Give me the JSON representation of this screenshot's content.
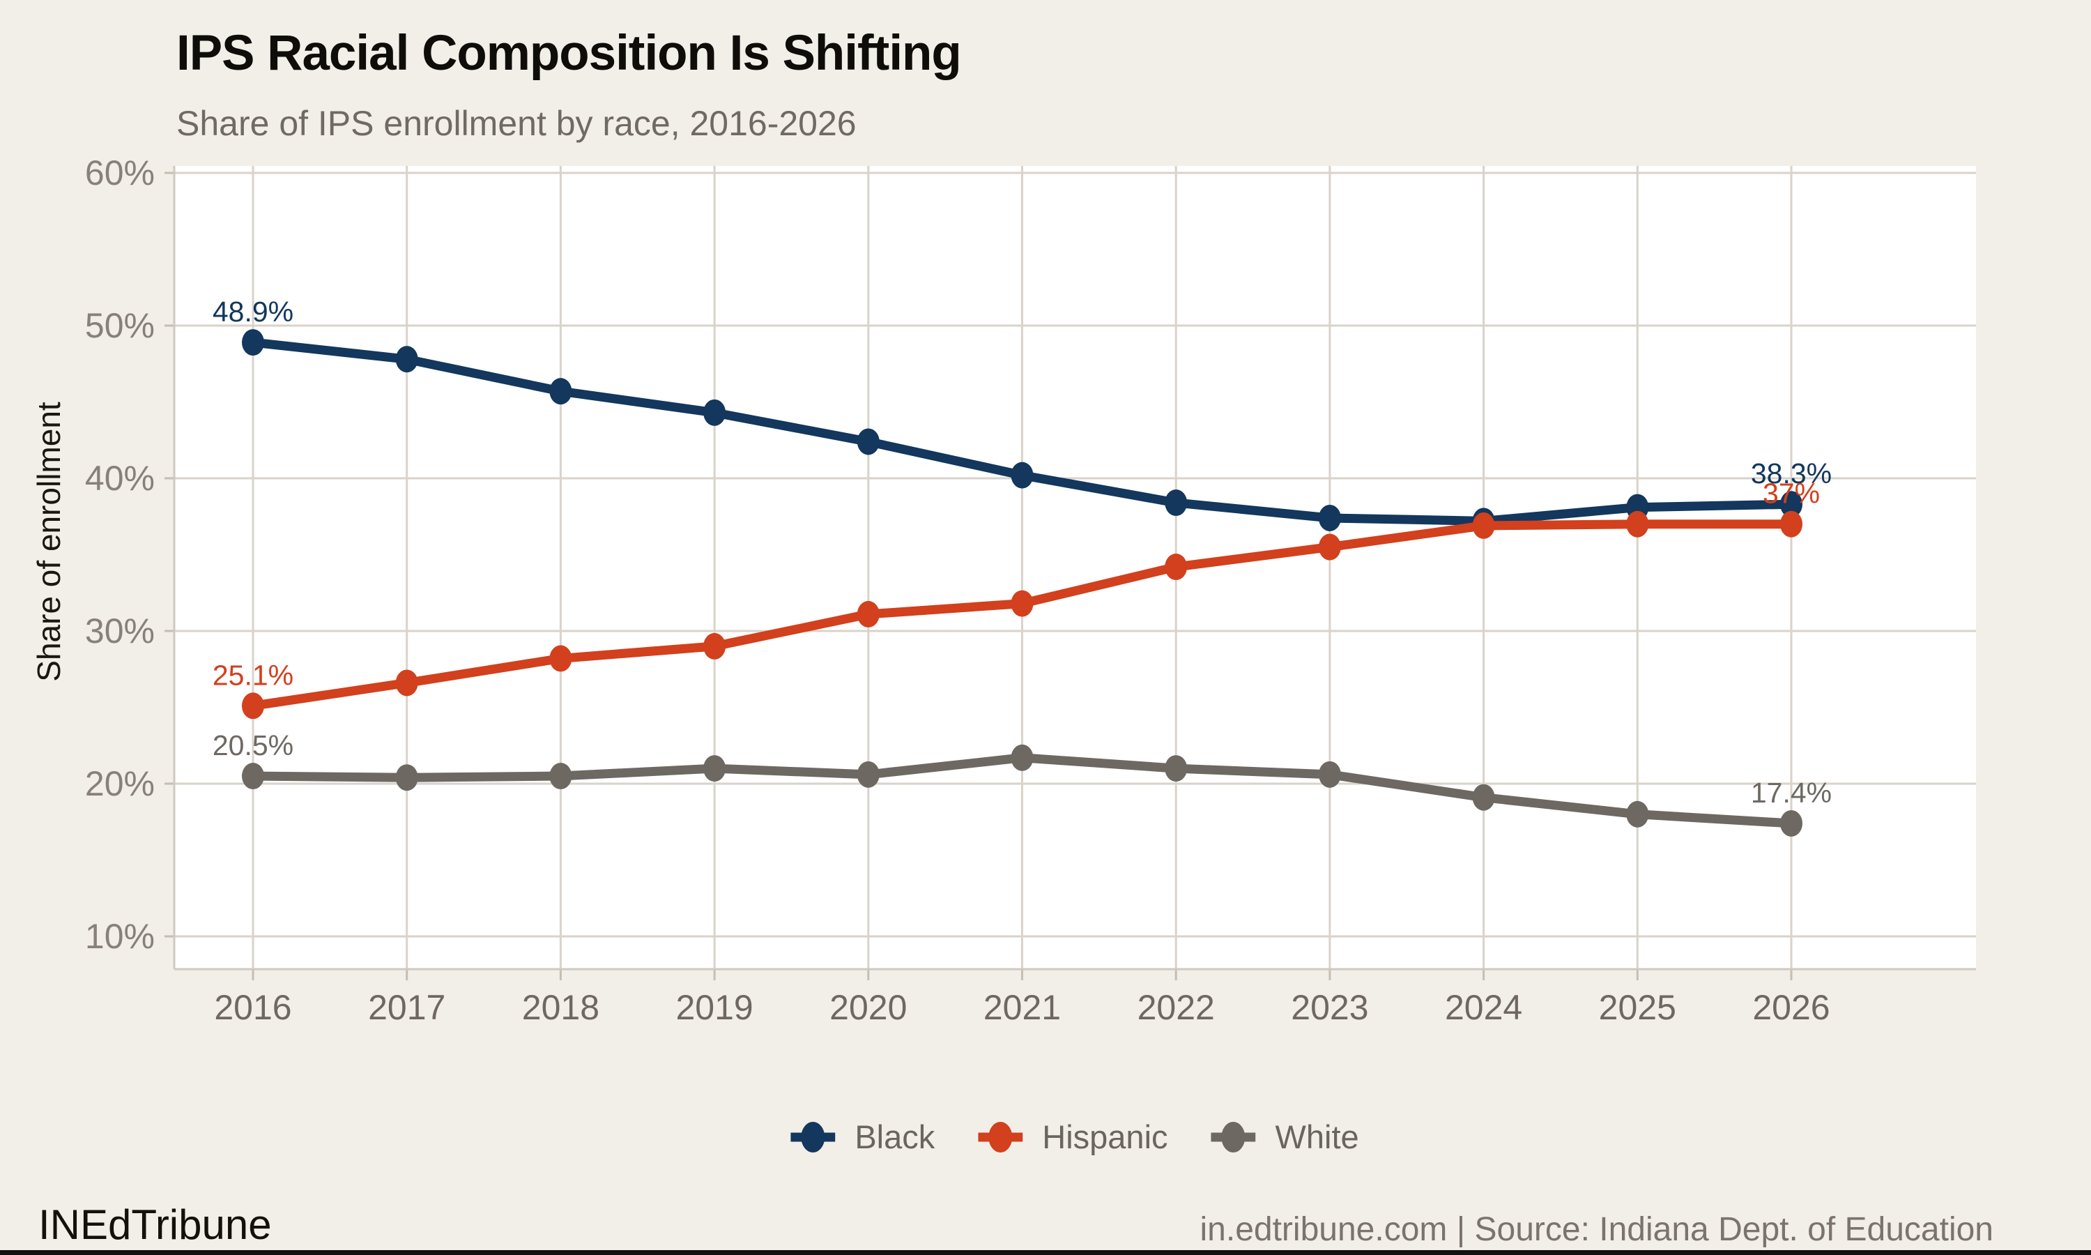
{
  "header": {
    "title": "IPS Racial Composition Is Shifting",
    "subtitle": "Share of IPS enrollment by race, 2016-2026"
  },
  "chart_data": {
    "type": "line",
    "title": "IPS Racial Composition Is Shifting",
    "subtitle": "Share of IPS enrollment by race, 2016-2026",
    "xlabel": "",
    "ylabel": "Share of enrollment",
    "categories": [
      "2016",
      "2017",
      "2018",
      "2019",
      "2020",
      "2021",
      "2022",
      "2023",
      "2024",
      "2025",
      "2026"
    ],
    "y_ticks": [
      "10%",
      "20%",
      "30%",
      "40%",
      "50%",
      "60%"
    ],
    "ylim": [
      10,
      60
    ],
    "grid": true,
    "legend_position": "bottom",
    "series": [
      {
        "name": "Black",
        "color": "#13375D",
        "values": [
          48.9,
          47.8,
          45.7,
          44.3,
          42.4,
          40.2,
          38.4,
          37.4,
          37.2,
          38.1,
          38.3
        ],
        "start_label": "48.9%",
        "end_label": "38.3%"
      },
      {
        "name": "Hispanic",
        "color": "#D2401D",
        "values": [
          25.1,
          26.6,
          28.2,
          29.0,
          31.1,
          31.8,
          34.2,
          35.5,
          36.9,
          37.0,
          37.0
        ],
        "start_label": "25.1%",
        "end_label": "37%"
      },
      {
        "name": "White",
        "color": "#6D6862",
        "values": [
          20.5,
          20.4,
          20.5,
          21.0,
          20.6,
          21.7,
          21.0,
          20.6,
          19.1,
          18.0,
          17.4
        ],
        "start_label": "20.5%",
        "end_label": "17.4%"
      }
    ],
    "colors": {
      "page_background": "#F2EFE8",
      "plot_background": "#FFFFFF",
      "grid": "#D9D3CA",
      "axis_line": "#CFC9BF",
      "tick": "#C4BEB4",
      "x_tick_label": "#6E6861",
      "y_tick_label": "#87817A"
    }
  },
  "footer": {
    "brand": "INEdTribune",
    "source": "in.edtribune.com | Source: Indiana Dept. of Education"
  }
}
